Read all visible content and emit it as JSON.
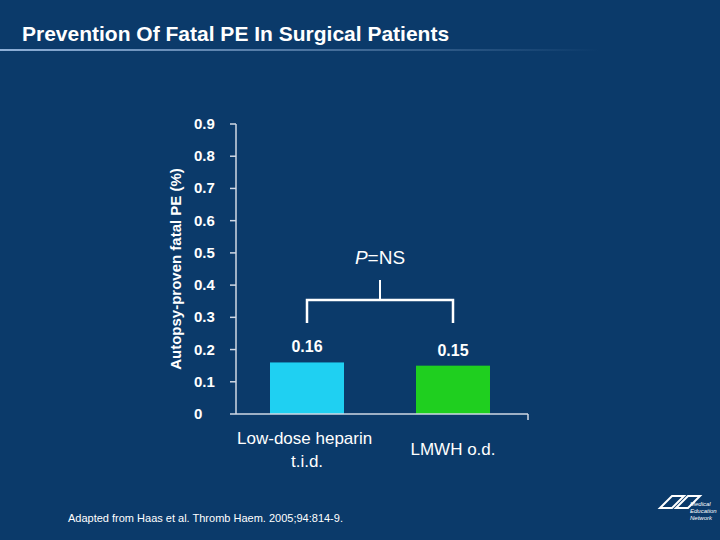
{
  "chart_data": {
    "type": "bar",
    "title": "Prevention Of Fatal PE In Surgical Patients",
    "y_label": "Autopsy-proven fatal PE (%)",
    "categories": [
      "Low-dose heparin t.i.d.",
      "LMWH o.d."
    ],
    "values": [
      0.16,
      0.15
    ],
    "colors": [
      "#1fd0f2",
      "#1fcf1f"
    ],
    "ylim": [
      0,
      0.9
    ],
    "yticks": [
      0,
      0.1,
      0.2,
      0.3,
      0.4,
      0.5,
      0.6,
      0.7,
      0.8,
      0.9
    ],
    "data_labels": true,
    "grid": false,
    "annotation": "P=NS",
    "source": "Adapted from Haas et al. Thromb Haem. 2005;94:814-9.",
    "logo": "Medical Education Network"
  }
}
